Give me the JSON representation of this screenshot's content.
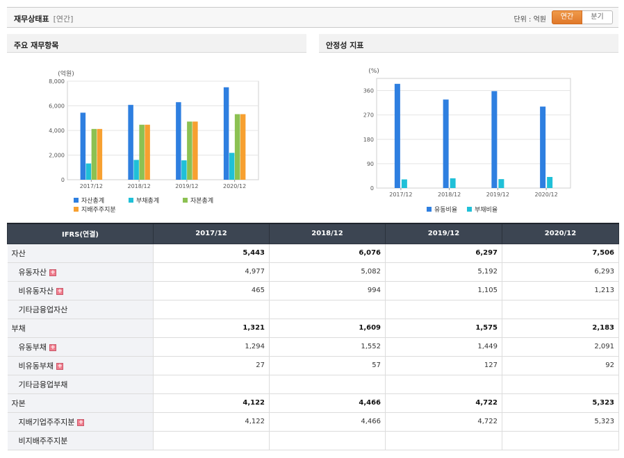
{
  "header": {
    "title": "재무상태표",
    "subtitle": "[연간]",
    "unit": "단위 : 억원",
    "btn_annual": "연간",
    "btn_quarter": "분기"
  },
  "panel_left": {
    "title": "주요 재무항목"
  },
  "panel_right": {
    "title": "안정성 지표"
  },
  "chart_data": [
    {
      "type": "bar",
      "ylabel": "(억원)",
      "ylim": [
        0,
        8000
      ],
      "yticks": [
        "0",
        "2,000",
        "4,000",
        "6,000",
        "8,000"
      ],
      "ytick_values": [
        0,
        2000,
        4000,
        6000,
        8000
      ],
      "categories": [
        "2017/12",
        "2018/12",
        "2019/12",
        "2020/12"
      ],
      "series": [
        {
          "name": "자산총계",
          "color": "#2e7fe0",
          "values": [
            5443,
            6076,
            6297,
            7506
          ]
        },
        {
          "name": "부채총계",
          "color": "#20c0d8",
          "values": [
            1321,
            1609,
            1575,
            2183
          ]
        },
        {
          "name": "자본총계",
          "color": "#8cc152",
          "values": [
            4122,
            4466,
            4722,
            5323
          ]
        },
        {
          "name": "지배주주지분",
          "color": "#f7a030",
          "values": [
            4122,
            4466,
            4722,
            5323
          ]
        }
      ],
      "grid": true,
      "legend": "bottom"
    },
    {
      "type": "bar",
      "ylabel": "(%)",
      "ylim": [
        0,
        405
      ],
      "yticks": [
        "0",
        "90",
        "180",
        "270",
        "360"
      ],
      "ytick_values": [
        0,
        90,
        180,
        270,
        360
      ],
      "categories": [
        "2017/12",
        "2018/12",
        "2019/12",
        "2020/12"
      ],
      "series": [
        {
          "name": "유동비율",
          "color": "#2e7fe0",
          "values": [
            385,
            327,
            358,
            301
          ]
        },
        {
          "name": "부채비율",
          "color": "#20c0d8",
          "values": [
            32,
            36,
            33,
            41
          ]
        }
      ],
      "grid": true,
      "legend": "bottom"
    }
  ],
  "table": {
    "header": [
      "IFRS(연결)",
      "2017/12",
      "2018/12",
      "2019/12",
      "2020/12"
    ],
    "rows": [
      {
        "label": "자산",
        "major": true,
        "plus": false,
        "values": [
          "5,443",
          "6,076",
          "6,297",
          "7,506"
        ]
      },
      {
        "label": "유동자산",
        "major": false,
        "plus": true,
        "values": [
          "4,977",
          "5,082",
          "5,192",
          "6,293"
        ]
      },
      {
        "label": "비유동자산",
        "major": false,
        "plus": true,
        "values": [
          "465",
          "994",
          "1,105",
          "1,213"
        ]
      },
      {
        "label": "기타금융업자산",
        "major": false,
        "plus": false,
        "values": [
          "",
          "",
          "",
          ""
        ]
      },
      {
        "label": "부채",
        "major": true,
        "plus": false,
        "values": [
          "1,321",
          "1,609",
          "1,575",
          "2,183"
        ]
      },
      {
        "label": "유동부채",
        "major": false,
        "plus": true,
        "values": [
          "1,294",
          "1,552",
          "1,449",
          "2,091"
        ]
      },
      {
        "label": "비유동부채",
        "major": false,
        "plus": true,
        "values": [
          "27",
          "57",
          "127",
          "92"
        ]
      },
      {
        "label": "기타금융업부채",
        "major": false,
        "plus": false,
        "values": [
          "",
          "",
          "",
          ""
        ]
      },
      {
        "label": "자본",
        "major": true,
        "plus": false,
        "values": [
          "4,122",
          "4,466",
          "4,722",
          "5,323"
        ]
      },
      {
        "label": "지배기업주주지분",
        "major": false,
        "plus": true,
        "values": [
          "4,122",
          "4,466",
          "4,722",
          "5,323"
        ]
      },
      {
        "label": "비지배주주지분",
        "major": false,
        "plus": false,
        "values": [
          "",
          "",
          "",
          ""
        ]
      }
    ]
  }
}
